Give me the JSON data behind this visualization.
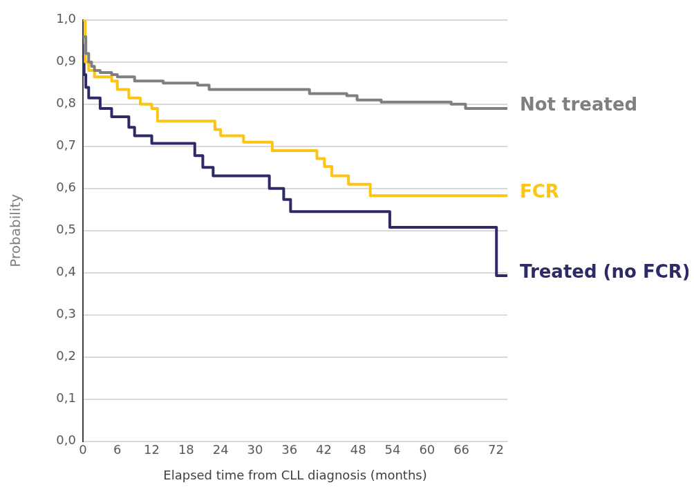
{
  "chart_data": {
    "type": "step",
    "xlabel": "Elapsed time from CLL diagnosis (months)",
    "ylabel": "Probability",
    "xlim": [
      0,
      74
    ],
    "xticks": [
      0,
      6,
      12,
      18,
      24,
      30,
      36,
      42,
      48,
      54,
      60,
      66,
      72
    ],
    "ylim": [
      0,
      1
    ],
    "yticks": [
      {
        "value": 0,
        "label": "0,0"
      },
      {
        "value": 0.1,
        "label": "0,1"
      },
      {
        "value": 0.2,
        "label": "0,2"
      },
      {
        "value": 0.3,
        "label": "0,3"
      },
      {
        "value": 0.4,
        "label": "0,4"
      },
      {
        "value": 0.5,
        "label": "0,5"
      },
      {
        "value": 0.6,
        "label": "0,6"
      },
      {
        "value": 0.7,
        "label": "0,7"
      },
      {
        "value": 0.8,
        "label": "0,8"
      },
      {
        "value": 0.9,
        "label": "0,9"
      },
      {
        "value": 1,
        "label": "1,0"
      }
    ],
    "grid": "y",
    "legend": false,
    "marker": "none",
    "line_style": "solid",
    "series": [
      {
        "name": "Not treated",
        "color": "#7f7f7f",
        "x": [
          0,
          0.5,
          1,
          1.5,
          2,
          3,
          5,
          6,
          9,
          14,
          20,
          22,
          39.5,
          46,
          47.8,
          52,
          64.2,
          66.7,
          74
        ],
        "values": [
          0.96,
          0.92,
          0.9,
          0.89,
          0.88,
          0.875,
          0.87,
          0.865,
          0.855,
          0.85,
          0.845,
          0.835,
          0.825,
          0.82,
          0.81,
          0.805,
          0.8,
          0.79,
          0.79
        ]
      },
      {
        "name": "FCR",
        "color": "#fcc413",
        "x": [
          0,
          0.4,
          1,
          2,
          5,
          6,
          8,
          10,
          12,
          13,
          23,
          24,
          28,
          33,
          40.8,
          42.1,
          43.4,
          46.3,
          50.1,
          74
        ],
        "values": [
          1,
          0.9,
          0.88,
          0.865,
          0.855,
          0.835,
          0.815,
          0.8,
          0.79,
          0.76,
          0.74,
          0.725,
          0.71,
          0.69,
          0.671,
          0.652,
          0.63,
          0.61,
          0.583,
          0.583
        ]
      },
      {
        "name": "Treated (no FCR)",
        "color": "#2e2a68",
        "x": [
          0,
          0.2,
          0.5,
          1,
          3,
          5,
          8,
          9,
          12,
          19.5,
          20.9,
          22.7,
          32.5,
          35,
          36.2,
          53.5,
          72.1,
          74
        ],
        "values": [
          0.94,
          0.87,
          0.84,
          0.815,
          0.79,
          0.77,
          0.745,
          0.725,
          0.707,
          0.678,
          0.65,
          0.63,
          0.6,
          0.574,
          0.545,
          0.508,
          0.393,
          0.393
        ]
      }
    ]
  }
}
